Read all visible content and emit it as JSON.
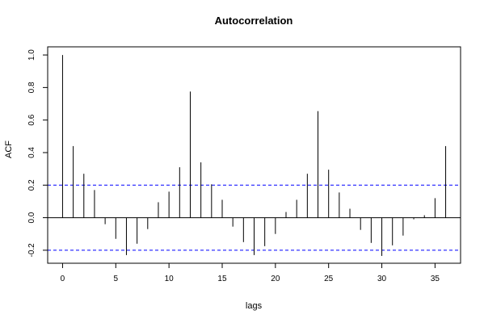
{
  "chart_data": {
    "type": "bar",
    "title": "Autocorrelation",
    "xlabel": "lags",
    "ylabel": "ACF",
    "xlim": [
      -1.4,
      37.4
    ],
    "ylim": [
      -0.28,
      1.05
    ],
    "x_ticks": [
      0,
      5,
      10,
      15,
      20,
      25,
      30,
      35
    ],
    "x_tick_labels": [
      "0",
      "5",
      "10",
      "15",
      "20",
      "25",
      "30",
      "35"
    ],
    "y_ticks": [
      -0.2,
      0.0,
      0.2,
      0.4,
      0.6,
      0.8,
      1.0
    ],
    "y_tick_labels": [
      "-0.2",
      "0.0",
      "0.2",
      "0.4",
      "0.6",
      "0.8",
      "1.0"
    ],
    "grid": false,
    "confidence_bounds": [
      0.2,
      -0.2
    ],
    "colors": {
      "spike": "#000000",
      "zero_line": "#000000",
      "bound_line": "#0000ff",
      "frame": "#000000"
    },
    "series": [
      {
        "x": [
          0,
          1,
          2,
          3,
          4,
          5,
          6,
          7,
          8,
          9,
          10,
          11,
          12,
          13,
          14,
          15,
          16,
          17,
          18,
          19,
          20,
          21,
          22,
          23,
          24,
          25,
          26,
          27,
          28,
          29,
          30,
          31,
          32,
          33,
          34,
          35,
          36
        ],
        "values": [
          1.0,
          0.44,
          0.27,
          0.17,
          -0.04,
          -0.13,
          -0.23,
          -0.16,
          -0.07,
          0.095,
          0.16,
          0.31,
          0.775,
          0.34,
          0.205,
          0.11,
          -0.055,
          -0.15,
          -0.23,
          -0.175,
          -0.1,
          0.035,
          0.11,
          0.27,
          0.655,
          0.295,
          0.155,
          0.055,
          -0.075,
          -0.155,
          -0.235,
          -0.17,
          -0.11,
          -0.01,
          0.015,
          0.12,
          0.44
        ]
      }
    ]
  }
}
